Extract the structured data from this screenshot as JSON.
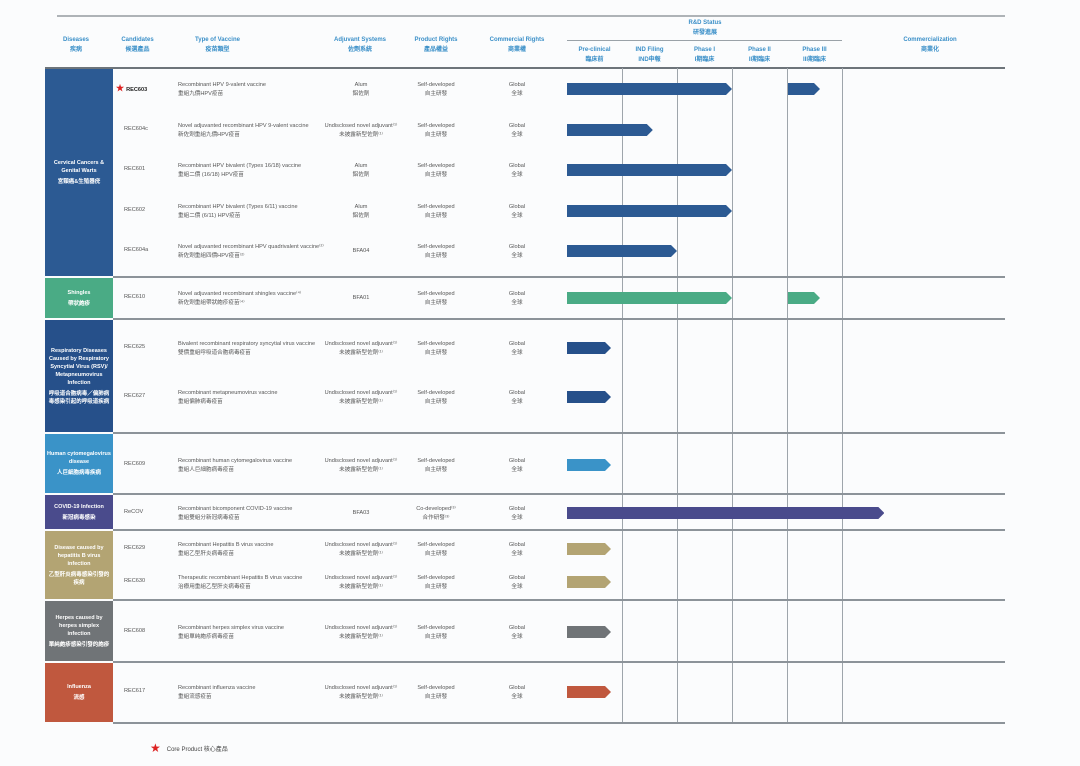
{
  "header": {
    "diseases": {
      "en": "Diseases",
      "zh": "疾病"
    },
    "candidates": {
      "en": "Candidates",
      "zh": "候選產品"
    },
    "type": {
      "en": "Type of Vaccine",
      "zh": "疫苗類型"
    },
    "adjuvant": {
      "en": "Adjuvant Systems",
      "zh": "佐劑系統"
    },
    "product_rights": {
      "en": "Product Rights",
      "zh": "產品權益"
    },
    "commercial_rights": {
      "en": "Commercial Rights",
      "zh": "商業權"
    },
    "rd_status": {
      "en": "R&D Status",
      "zh": "研發進展"
    },
    "stages": [
      {
        "en": "Pre-clinical",
        "zh": "臨床前"
      },
      {
        "en": "IND Filing",
        "zh": "IND申報"
      },
      {
        "en": "Phase I",
        "zh": "I期臨床"
      },
      {
        "en": "Phase II",
        "zh": "II期臨床"
      },
      {
        "en": "Phase III",
        "zh": "III期臨床"
      }
    ],
    "commercialization": {
      "en": "Commercialization",
      "zh": "商業化"
    }
  },
  "groups": [
    {
      "en": "Cervical Cancers & Genital Warts",
      "zh": "宮頸癌&生殖器疣",
      "color": "#2c5a93"
    },
    {
      "en": "Shingles",
      "zh": "帶狀皰疹",
      "color": "#4aab85"
    },
    {
      "en": "Respiratory Diseases Caused by Respiratory Syncytial Virus (RSV)/ Metapneumovirus Infection",
      "zh": "呼吸道合胞病毒／偏肺病毒感染引起的呼吸道疾病",
      "color": "#26508a"
    },
    {
      "en": "Human cytomegalovirus disease",
      "zh": "人巨細胞病毒疾病",
      "color": "#3a93c8"
    },
    {
      "en": "COVID-19 Infection",
      "zh": "新冠病毒感染",
      "color": "#4a4b8c"
    },
    {
      "en": "Disease caused by hepatitis B virus infection",
      "zh": "乙型肝炎病毒感染引發的疾病",
      "color": "#b3a473"
    },
    {
      "en": "Herpes caused by herpes simplex infection",
      "zh": "單純皰疹感染引發的皰疹",
      "color": "#707477"
    },
    {
      "en": "Influenza",
      "zh": "流感",
      "color": "#c0583e"
    }
  ],
  "candidates": [
    {
      "group": 0,
      "name": "REC603",
      "core": true,
      "type_en": "Recombinant HPV 9-valent vaccine",
      "type_zh": "重組九價HPV疫苗",
      "adj_en": "Alum",
      "adj_zh": "鋁佐劑",
      "prod_en": "Self-developed",
      "prod_zh": "自主研發",
      "comm_en": "Global",
      "comm_zh": "全球",
      "progress": [
        [
          0,
          3
        ],
        [
          4,
          4.6
        ]
      ],
      "bar_color": "#2c5a93"
    },
    {
      "group": 0,
      "name": "REC604c",
      "core": false,
      "type_en": "Novel adjuvanted recombinant HPV 9-valent vaccine",
      "type_zh": "新佐劑重組九價HPV疫苗",
      "adj_en": "Undisclosed novel adjuvant⁽¹⁾",
      "adj_zh": "未披露新型佐劑⁽¹⁾",
      "prod_en": "Self-developed",
      "prod_zh": "自主研發",
      "comm_en": "Global",
      "comm_zh": "全球",
      "progress": [
        [
          0,
          1.56
        ]
      ],
      "bar_color": "#2c5a93"
    },
    {
      "group": 0,
      "name": "REC601",
      "core": false,
      "type_en": "Recombinant HPV bivalent (Types 16/18) vaccine",
      "type_zh": "重組二價 (16/18) HPV疫苗",
      "adj_en": "Alum",
      "adj_zh": "鋁佐劑",
      "prod_en": "Self-developed",
      "prod_zh": "自主研發",
      "comm_en": "Global",
      "comm_zh": "全球",
      "progress": [
        [
          0,
          3
        ]
      ],
      "bar_color": "#2c5a93"
    },
    {
      "group": 0,
      "name": "REC602",
      "core": false,
      "type_en": "Recombinant HPV bivalent (Types 6/11) vaccine",
      "type_zh": "重組二價 (6/11) HPV疫苗",
      "adj_en": "Alum",
      "adj_zh": "鋁佐劑",
      "prod_en": "Self-developed",
      "prod_zh": "自主研發",
      "comm_en": "Global",
      "comm_zh": "全球",
      "progress": [
        [
          0,
          3
        ]
      ],
      "bar_color": "#2c5a93"
    },
    {
      "group": 0,
      "name": "REC604a",
      "core": false,
      "type_en": "Novel adjuvanted recombinant HPV quadrivalent vaccine⁽²⁾",
      "type_zh": "新佐劑重組四價HPV疫苗⁽²⁾",
      "adj_en": "BFA04",
      "adj_zh": "",
      "prod_en": "Self-developed",
      "prod_zh": "自主研發",
      "comm_en": "Global",
      "comm_zh": "全球",
      "progress": [
        [
          0,
          2
        ]
      ],
      "bar_color": "#2c5a93"
    },
    {
      "group": 1,
      "name": "REC610",
      "core": false,
      "type_en": "Novel adjuvanted recombinant shingles vaccine⁽⁴⁾",
      "type_zh": "新佐劑重組帶狀皰疹疫苗⁽⁴⁾",
      "adj_en": "BFA01",
      "adj_zh": "",
      "prod_en": "Self-developed",
      "prod_zh": "自主研發",
      "comm_en": "Global",
      "comm_zh": "全球",
      "progress": [
        [
          0,
          3
        ],
        [
          4,
          4.6
        ]
      ],
      "bar_color": "#4aab85"
    },
    {
      "group": 2,
      "name": "REC625",
      "core": false,
      "type_en": "Bivalent recombinant respiratory syncytial virus vaccine",
      "type_zh": "雙價重組呼吸道合胞病毒疫苗",
      "adj_en": "Undisclosed novel adjuvant⁽¹⁾",
      "adj_zh": "未披露新型佐劑⁽¹⁾",
      "prod_en": "Self-developed",
      "prod_zh": "自主研發",
      "comm_en": "Global",
      "comm_zh": "全球",
      "progress": [
        [
          0,
          0.8
        ]
      ],
      "bar_color": "#26508a"
    },
    {
      "group": 2,
      "name": "REC627",
      "core": false,
      "type_en": "Recombinant metapneumovirus vaccine",
      "type_zh": "重組偏肺病毒疫苗",
      "adj_en": "Undisclosed novel adjuvant⁽¹⁾",
      "adj_zh": "未披露新型佐劑⁽¹⁾",
      "prod_en": "Self-developed",
      "prod_zh": "自主研發",
      "comm_en": "Global",
      "comm_zh": "全球",
      "progress": [
        [
          0,
          0.8
        ]
      ],
      "bar_color": "#26508a"
    },
    {
      "group": 3,
      "name": "REC609",
      "core": false,
      "type_en": "Recombinant human cytomegalovirus vaccine",
      "type_zh": "重組人巨細胞病毒疫苗",
      "adj_en": "Undisclosed novel adjuvant⁽¹⁾",
      "adj_zh": "未披露新型佐劑⁽¹⁾",
      "prod_en": "Self-developed",
      "prod_zh": "自主研發",
      "comm_en": "Global",
      "comm_zh": "全球",
      "progress": [
        [
          0,
          0.8
        ]
      ],
      "bar_color": "#3a93c8"
    },
    {
      "group": 4,
      "name": "ReCOV",
      "core": false,
      "type_en": "Recombinant bicomponent COVID-19 vaccine",
      "type_zh": "重組雙組分新冠病毒疫苗",
      "adj_en": "BFA03",
      "adj_zh": "",
      "prod_en": "Co-developed⁽³⁾",
      "prod_zh": "合作研發⁽³⁾",
      "comm_en": "Global",
      "comm_zh": "全球",
      "progress": [
        [
          0,
          5.26
        ]
      ],
      "bar_color": "#4a4b8c"
    },
    {
      "group": 5,
      "name": "REC629",
      "core": false,
      "type_en": "Recombinant Hepatitis B virus vaccine",
      "type_zh": "重組乙型肝炎病毒疫苗",
      "adj_en": "Undisclosed novel adjuvant⁽¹⁾",
      "adj_zh": "未披露新型佐劑⁽¹⁾",
      "prod_en": "Self-developed",
      "prod_zh": "自主研發",
      "comm_en": "Global",
      "comm_zh": "全球",
      "progress": [
        [
          0,
          0.8
        ]
      ],
      "bar_color": "#b3a473"
    },
    {
      "group": 5,
      "name": "REC630",
      "core": false,
      "type_en": "Therapeutic recombinant Hepatitis B virus vaccine",
      "type_zh": "治療用重組乙型肝炎病毒疫苗",
      "adj_en": "Undisclosed novel adjuvant⁽¹⁾",
      "adj_zh": "未披露新型佐劑⁽¹⁾",
      "prod_en": "Self-developed",
      "prod_zh": "自主研發",
      "comm_en": "Global",
      "comm_zh": "全球",
      "progress": [
        [
          0,
          0.8
        ]
      ],
      "bar_color": "#b3a473"
    },
    {
      "group": 6,
      "name": "REC608",
      "core": false,
      "type_en": "Recombinant herpes simplex virus vaccine",
      "type_zh": "重組單純皰疹病毒疫苗",
      "adj_en": "Undisclosed novel adjuvant⁽¹⁾",
      "adj_zh": "未披露新型佐劑⁽¹⁾",
      "prod_en": "Self-developed",
      "prod_zh": "自主研發",
      "comm_en": "Global",
      "comm_zh": "全球",
      "progress": [
        [
          0,
          0.8
        ]
      ],
      "bar_color": "#707477"
    },
    {
      "group": 7,
      "name": "REC617",
      "core": false,
      "type_en": "Recombinant influenza vaccine",
      "type_zh": "重組流感疫苗",
      "adj_en": "Undisclosed novel adjuvant⁽¹⁾",
      "adj_zh": "未披露新型佐劑⁽¹⁾",
      "prod_en": "Self-developed",
      "prod_zh": "自主研發",
      "comm_en": "Global",
      "comm_zh": "全球",
      "progress": [
        [
          0,
          0.8
        ]
      ],
      "bar_color": "#c0583e"
    }
  ],
  "legend": {
    "label": "Core Product 核心產品",
    "star_color": "#d22222"
  }
}
